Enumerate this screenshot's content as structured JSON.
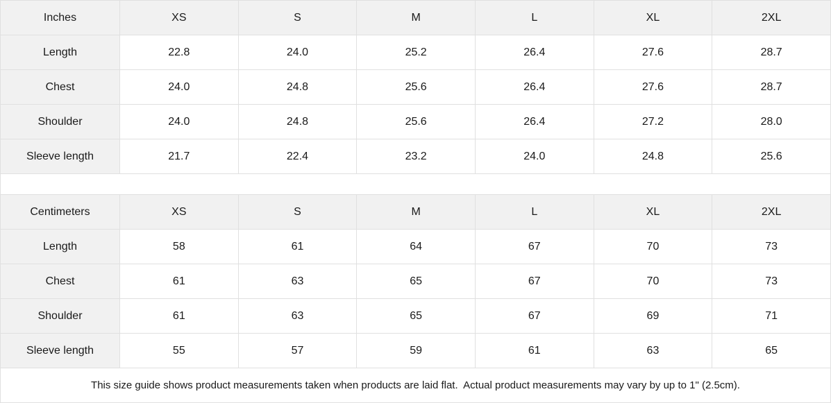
{
  "colors": {
    "header_bg": "#f1f1f1",
    "label_bg": "#f1f1f1",
    "cell_bg": "#ffffff",
    "border": "#e0e0e0",
    "text": "#1a1a1a"
  },
  "tables": [
    {
      "unit_label": "Inches",
      "columns": [
        "XS",
        "S",
        "M",
        "L",
        "XL",
        "2XL"
      ],
      "rows": [
        {
          "label": "Length",
          "values": [
            "22.8",
            "24.0",
            "25.2",
            "26.4",
            "27.6",
            "28.7"
          ]
        },
        {
          "label": "Chest",
          "values": [
            "24.0",
            "24.8",
            "25.6",
            "26.4",
            "27.6",
            "28.7"
          ]
        },
        {
          "label": "Shoulder",
          "values": [
            "24.0",
            "24.8",
            "25.6",
            "26.4",
            "27.2",
            "28.0"
          ]
        },
        {
          "label": "Sleeve length",
          "values": [
            "21.7",
            "22.4",
            "23.2",
            "24.0",
            "24.8",
            "25.6"
          ]
        }
      ]
    },
    {
      "unit_label": "Centimeters",
      "columns": [
        "XS",
        "S",
        "M",
        "L",
        "XL",
        "2XL"
      ],
      "rows": [
        {
          "label": "Length",
          "values": [
            "58",
            "61",
            "64",
            "67",
            "70",
            "73"
          ]
        },
        {
          "label": "Chest",
          "values": [
            "61",
            "63",
            "65",
            "67",
            "70",
            "73"
          ]
        },
        {
          "label": "Shoulder",
          "values": [
            "61",
            "63",
            "65",
            "67",
            "69",
            "71"
          ]
        },
        {
          "label": "Sleeve length",
          "values": [
            "55",
            "57",
            "59",
            "61",
            "63",
            "65"
          ]
        }
      ]
    }
  ],
  "footnote": "This size guide shows product measurements taken when products are laid flat.  Actual product measurements may vary by up to 1\" (2.5cm)."
}
